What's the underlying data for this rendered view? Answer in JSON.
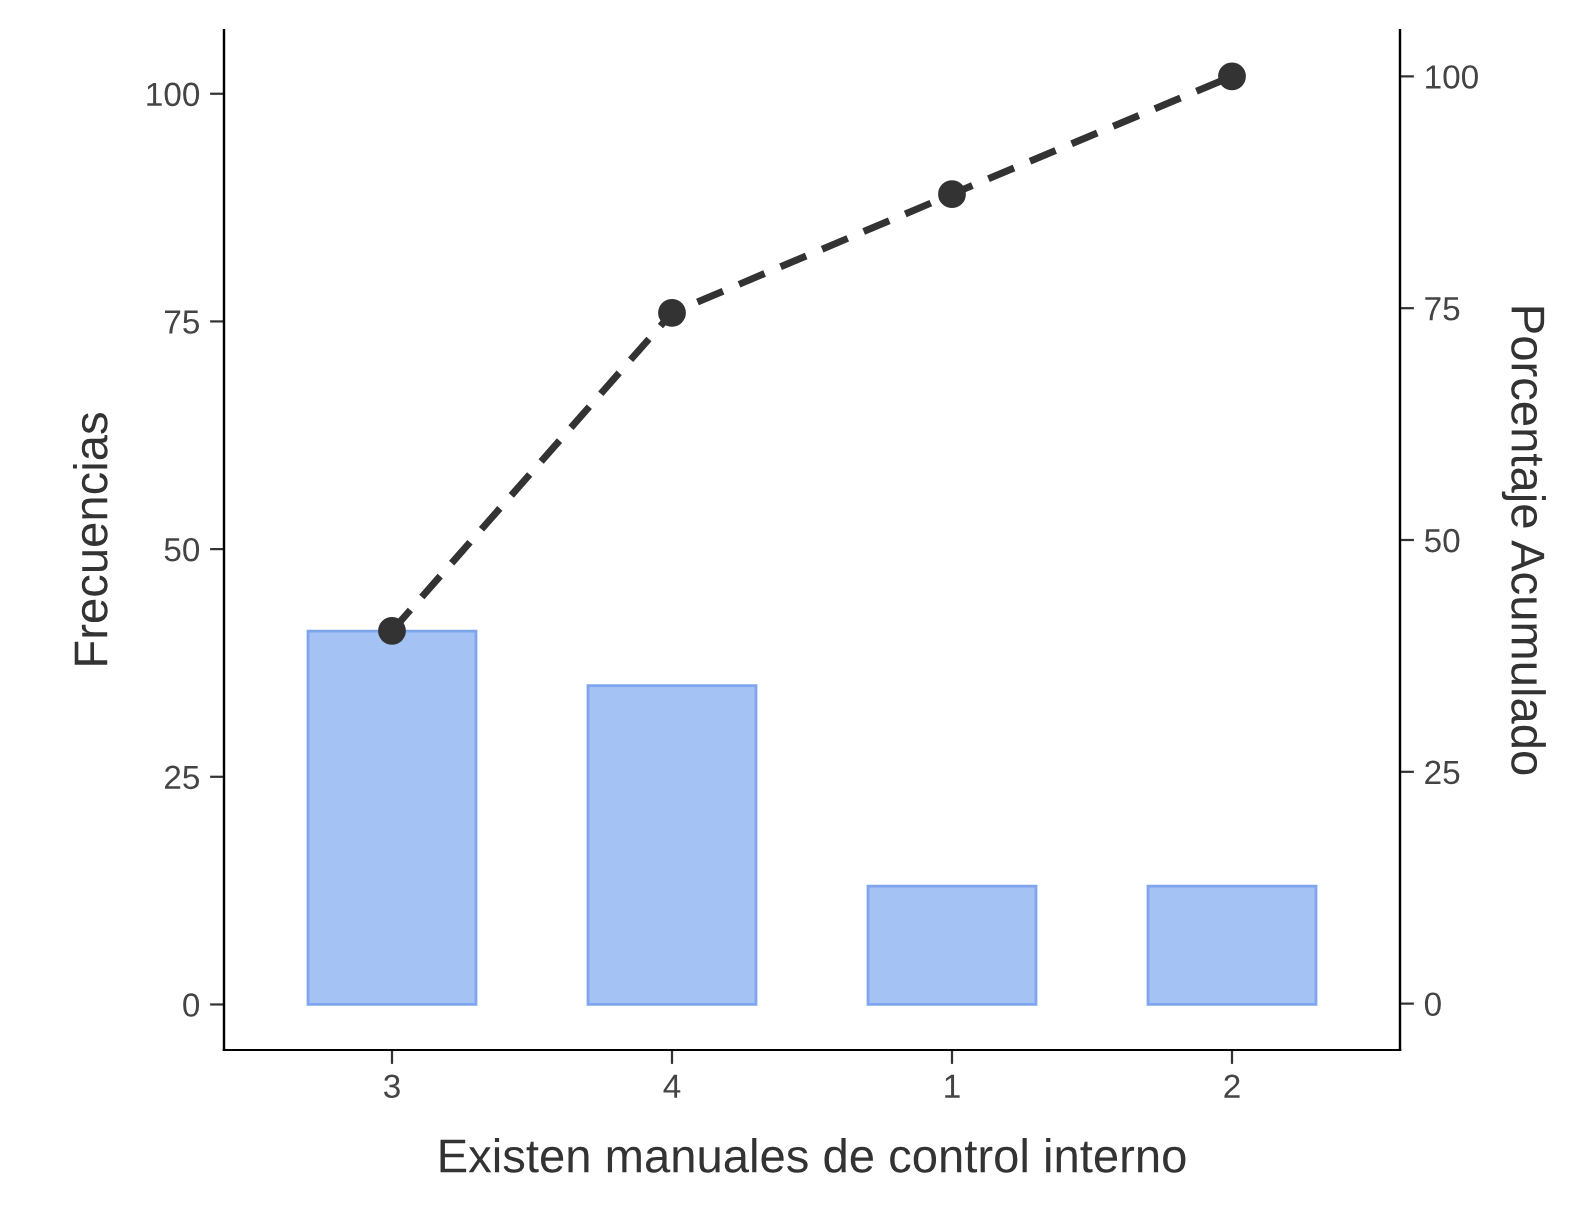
{
  "chart_data": {
    "type": "bar",
    "xlabel": "Existen manuales de control interno",
    "ylabel": "Frecuencias",
    "y2label": "Porcentaje Acumulado",
    "categories": [
      "3",
      "4",
      "1",
      "2"
    ],
    "series": [
      {
        "color": "#a4c2f4",
        "values": [
          41,
          35,
          13,
          13
        ]
      },
      {
        "type": "line",
        "axis": "y2",
        "color": "#333333",
        "values": [
          40.2,
          74.5,
          87.3,
          100
        ],
        "marker": "circle",
        "line_style": "dashed"
      }
    ],
    "ylim": [
      -5,
      107
    ],
    "yticks": [
      0,
      25,
      50,
      75,
      100
    ],
    "y2lim": [
      -5,
      105
    ],
    "y2ticks": [
      0,
      25,
      50,
      75,
      100
    ],
    "grid": false,
    "legend": false
  }
}
